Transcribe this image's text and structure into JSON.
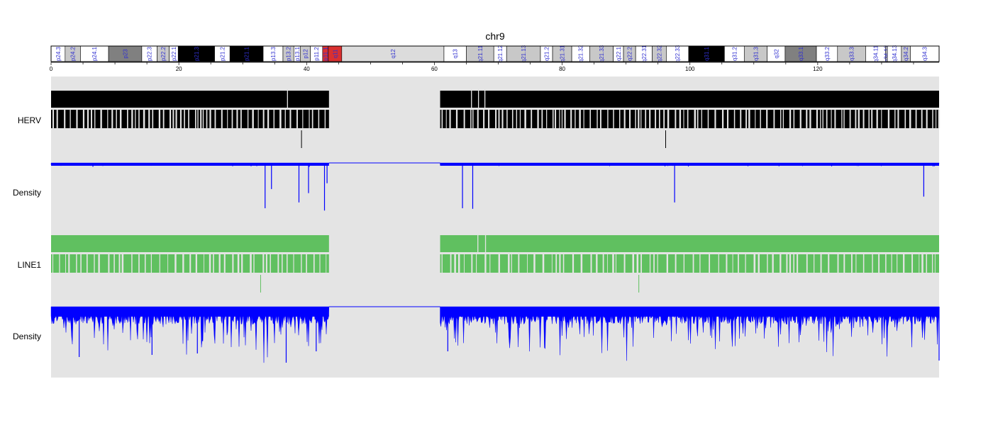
{
  "title": "chr9",
  "axis": {
    "min": 0,
    "max": 139,
    "ticks": [
      0,
      20,
      40,
      60,
      80,
      100,
      120
    ]
  },
  "colors": {
    "herv": "#000000",
    "line1": "#60c060",
    "density": "#0000ff",
    "panel_bg": "#e4e4e4",
    "centromere": "#d93030"
  },
  "ideogram": {
    "bands": [
      {
        "name": "p24.3",
        "start": 0,
        "end": 2.2,
        "stain": "gneg"
      },
      {
        "name": "p24.2",
        "start": 2.2,
        "end": 4.6,
        "stain": "gpos25"
      },
      {
        "name": "p24.1",
        "start": 4.6,
        "end": 9.0,
        "stain": "gneg"
      },
      {
        "name": "p23",
        "start": 9.0,
        "end": 14.2,
        "stain": "gpos75"
      },
      {
        "name": "p22.3",
        "start": 14.2,
        "end": 16.6,
        "stain": "gneg"
      },
      {
        "name": "p22.2",
        "start": 16.6,
        "end": 18.5,
        "stain": "gpos25"
      },
      {
        "name": "p22.1",
        "start": 18.5,
        "end": 19.9,
        "stain": "gneg"
      },
      {
        "name": "p21.3",
        "start": 19.9,
        "end": 25.6,
        "stain": "gpos100"
      },
      {
        "name": "p21.2",
        "start": 25.6,
        "end": 28.0,
        "stain": "gneg"
      },
      {
        "name": "p21.1",
        "start": 28.0,
        "end": 33.2,
        "stain": "gpos100"
      },
      {
        "name": "p13.3",
        "start": 33.2,
        "end": 36.3,
        "stain": "gneg"
      },
      {
        "name": "p13.2",
        "start": 36.3,
        "end": 38.0,
        "stain": "gpos25"
      },
      {
        "name": "p13.1",
        "start": 38.0,
        "end": 39.0,
        "stain": "gneg"
      },
      {
        "name": "p12",
        "start": 39.0,
        "end": 40.6,
        "stain": "gpos25"
      },
      {
        "name": "p11.2",
        "start": 40.6,
        "end": 42.5,
        "stain": "gneg"
      },
      {
        "name": "p11.1",
        "start": 42.5,
        "end": 43.4,
        "stain": "acen"
      },
      {
        "name": "q11",
        "start": 43.4,
        "end": 45.5,
        "stain": "acen"
      },
      {
        "name": "q12",
        "start": 45.5,
        "end": 61.5,
        "stain": "gvar"
      },
      {
        "name": "q13",
        "start": 61.5,
        "end": 65.0,
        "stain": "gneg"
      },
      {
        "name": "q21.11",
        "start": 65.0,
        "end": 69.3,
        "stain": "gpos25"
      },
      {
        "name": "q21.12",
        "start": 69.3,
        "end": 71.3,
        "stain": "gneg"
      },
      {
        "name": "q21.13",
        "start": 71.3,
        "end": 76.6,
        "stain": "gpos50"
      },
      {
        "name": "q21.2",
        "start": 76.6,
        "end": 78.5,
        "stain": "gneg"
      },
      {
        "name": "q21.31",
        "start": 78.5,
        "end": 81.5,
        "stain": "gpos50"
      },
      {
        "name": "q21.32",
        "start": 81.5,
        "end": 84.3,
        "stain": "gneg"
      },
      {
        "name": "q21.33",
        "start": 84.3,
        "end": 88.0,
        "stain": "gpos50"
      },
      {
        "name": "q22.1",
        "start": 88.0,
        "end": 89.6,
        "stain": "gneg"
      },
      {
        "name": "q22.2",
        "start": 89.6,
        "end": 91.5,
        "stain": "gpos25"
      },
      {
        "name": "q22.31",
        "start": 91.5,
        "end": 94.1,
        "stain": "gneg"
      },
      {
        "name": "q22.32",
        "start": 94.1,
        "end": 96.3,
        "stain": "gpos25"
      },
      {
        "name": "q22.33",
        "start": 96.3,
        "end": 99.8,
        "stain": "gneg"
      },
      {
        "name": "q31.1",
        "start": 99.8,
        "end": 105.4,
        "stain": "gpos100"
      },
      {
        "name": "q31.2",
        "start": 105.4,
        "end": 108.5,
        "stain": "gneg"
      },
      {
        "name": "q31.3",
        "start": 108.5,
        "end": 112.1,
        "stain": "gpos25"
      },
      {
        "name": "q32",
        "start": 112.1,
        "end": 114.9,
        "stain": "gneg"
      },
      {
        "name": "q33.1",
        "start": 114.9,
        "end": 119.8,
        "stain": "gpos75"
      },
      {
        "name": "q33.2",
        "start": 119.8,
        "end": 123.1,
        "stain": "gneg"
      },
      {
        "name": "q33.3",
        "start": 123.1,
        "end": 127.5,
        "stain": "gpos25"
      },
      {
        "name": "q34.11",
        "start": 127.5,
        "end": 130.6,
        "stain": "gneg"
      },
      {
        "name": "q34.12",
        "start": 130.6,
        "end": 130.9,
        "stain": "gpos25"
      },
      {
        "name": "q34.13",
        "start": 130.9,
        "end": 133.1,
        "stain": "gneg"
      },
      {
        "name": "q34.2",
        "start": 133.1,
        "end": 134.5,
        "stain": "gpos25"
      },
      {
        "name": "q34.3",
        "start": 134.5,
        "end": 139.0,
        "stain": "gneg"
      }
    ]
  },
  "tracks": [
    {
      "label": "HERV",
      "kind": "features",
      "color": "#000000",
      "regions": [
        [
          0,
          43.5
        ],
        [
          60.9,
          139
        ]
      ],
      "solid_gaps": [
        37.0,
        65.8,
        66.9,
        67.9
      ],
      "outliers": [
        39.2,
        96.2
      ]
    },
    {
      "label": "Density",
      "kind": "density",
      "color": "#0000ff",
      "regions": [
        [
          0,
          43.5
        ],
        [
          60.9,
          139
        ]
      ],
      "base_depth": 0.06,
      "spikes": [
        [
          33.5,
          0.78
        ],
        [
          34.5,
          0.45
        ],
        [
          38.8,
          0.68
        ],
        [
          40.3,
          0.52
        ],
        [
          42.8,
          0.82
        ],
        [
          43.2,
          0.35
        ],
        [
          64.4,
          0.78
        ],
        [
          66.0,
          0.79
        ],
        [
          97.6,
          0.68
        ],
        [
          136.6,
          0.58
        ]
      ]
    },
    {
      "label": "LINE1",
      "kind": "features",
      "color": "#60c060",
      "regions": [
        [
          0,
          43.5
        ],
        [
          60.9,
          139
        ]
      ],
      "solid_gaps": [
        66.8,
        68.0
      ],
      "outliers": [
        32.8,
        92.0
      ]
    },
    {
      "label": "Density",
      "kind": "density",
      "color": "#0000ff",
      "regions": [
        [
          0,
          43.5
        ],
        [
          60.9,
          139
        ]
      ],
      "base_depth": 0.3,
      "spikes": [
        [
          4.4,
          0.71
        ],
        [
          15.8,
          0.68
        ],
        [
          22.9,
          0.66
        ],
        [
          36.8,
          0.79
        ],
        [
          41.5,
          0.63
        ],
        [
          62.1,
          0.63
        ],
        [
          139,
          0.76
        ]
      ]
    }
  ]
}
